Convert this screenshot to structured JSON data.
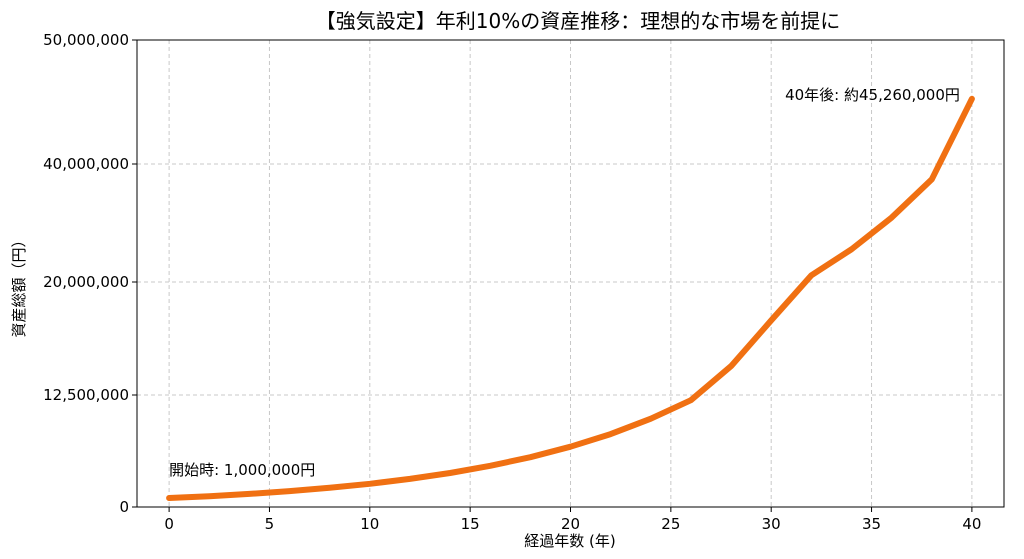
{
  "chart_data": {
    "type": "line",
    "title": "【強気設定】年利10%の資産推移：理想的な市場を前提に",
    "xlabel": "経過年数 (年)",
    "ylabel": "資産総額（円）",
    "xlim": [
      -1.6,
      41.6
    ],
    "x_ticks": [
      0,
      5,
      10,
      15,
      20,
      25,
      30,
      35,
      40
    ],
    "y_tick_labels": [
      "0",
      "12,500,000",
      "20,000,000",
      "40,000,000",
      "50,000,000"
    ],
    "grid": true,
    "series": [
      {
        "color": "#f07012",
        "x": [
          0,
          2,
          4,
          6,
          8,
          10,
          12,
          14,
          16,
          18,
          20,
          22,
          24,
          26,
          28,
          30,
          32,
          34,
          36,
          38,
          40
        ],
        "y": [
          1000000,
          1210000,
          1464100,
          1771561,
          2143589,
          2593742,
          3138428,
          3797498,
          4594973,
          5559917,
          6727500,
          8140275,
          9849733,
          11918177,
          14420994,
          17449402,
          21113777,
          25547670,
          30912680,
          37404343,
          45259256
        ]
      }
    ],
    "annotations": [
      {
        "text": "開始時: 1,000,000円",
        "x": 0,
        "y": 1000000
      },
      {
        "text": "40年後: 約45,260,000円",
        "x": 40,
        "y": 45259256
      }
    ]
  }
}
